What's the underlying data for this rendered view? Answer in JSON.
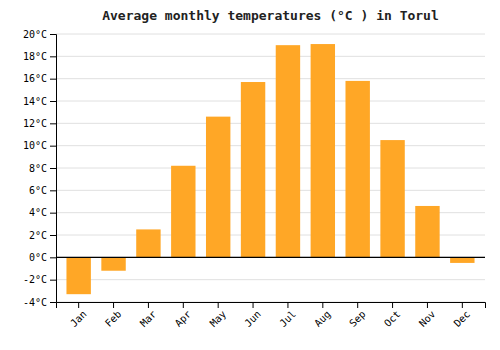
{
  "chart_data": {
    "type": "bar",
    "title": "Average monthly temperatures (°C ) in Torul",
    "categories": [
      "Jan",
      "Feb",
      "Mar",
      "Apr",
      "May",
      "Jun",
      "Jul",
      "Aug",
      "Sep",
      "Oct",
      "Nov",
      "Dec"
    ],
    "values": [
      -3.3,
      -1.2,
      2.5,
      8.2,
      12.6,
      15.7,
      19.0,
      19.1,
      15.8,
      10.5,
      4.6,
      -0.5
    ],
    "color": "#FFA726",
    "ylim": [
      -4,
      20
    ],
    "yticks": [
      {
        "value": -4,
        "label": "-4°C"
      },
      {
        "value": -2,
        "label": "-2°C"
      },
      {
        "value": 0,
        "label": "0°C"
      },
      {
        "value": 2,
        "label": "2°C"
      },
      {
        "value": 4,
        "label": "4°C"
      },
      {
        "value": 6,
        "label": "6°C"
      },
      {
        "value": 8,
        "label": "8°C"
      },
      {
        "value": 10,
        "label": "10°C"
      },
      {
        "value": 12,
        "label": "12°C"
      },
      {
        "value": 14,
        "label": "14°C"
      },
      {
        "value": 16,
        "label": "16°C"
      },
      {
        "value": 18,
        "label": "18°C"
      },
      {
        "value": 20,
        "label": "20°C"
      }
    ],
    "grid": true
  }
}
